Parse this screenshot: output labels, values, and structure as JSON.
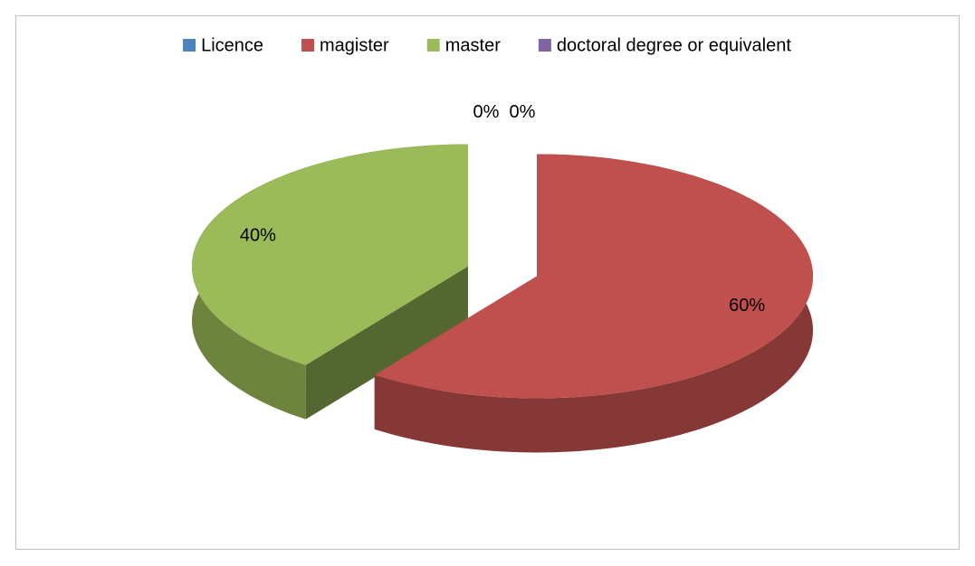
{
  "chart_data": {
    "type": "pie3d",
    "categories": [
      "Licence",
      "magister",
      "master",
      "doctoral degree or equivalent"
    ],
    "values": [
      0,
      60,
      40,
      0
    ],
    "value_labels": [
      "0%",
      "60%",
      "40%",
      "0%"
    ],
    "colors": [
      "#4f81bd",
      "#c0504d",
      "#9bbb59",
      "#8064a2"
    ],
    "legend": "top"
  }
}
